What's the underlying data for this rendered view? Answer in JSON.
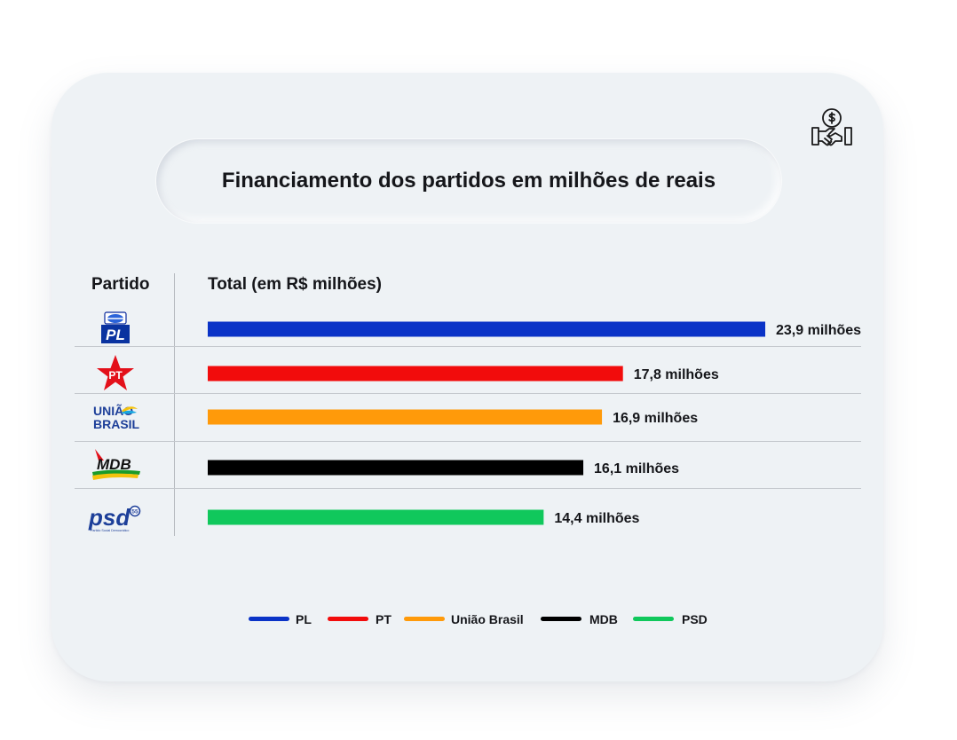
{
  "title": "Financiamento dos partidos em milhões de reais",
  "header": {
    "party_col": "Partido",
    "total_col": "Total (em R$ milhões)"
  },
  "icons": {
    "top_right": "money-handshake-icon"
  },
  "logos": {
    "pl": "PL",
    "pt": "PT",
    "uniao": [
      "UNIÃO",
      "BRASIL"
    ],
    "mdb": "MDB",
    "psd": "psd",
    "psd_number": "55",
    "psd_caption": "Partido Social Democrático"
  },
  "chart_data": {
    "type": "bar",
    "orientation": "horizontal",
    "title": "Financiamento dos partidos em milhões de reais",
    "xlabel": "Total (em R$ milhões)",
    "ylabel": "Partido",
    "categories": [
      "PL",
      "PT",
      "União Brasil",
      "MDB",
      "PSD"
    ],
    "values": [
      23.9,
      17.8,
      16.9,
      16.1,
      14.4
    ],
    "data_labels": [
      "23,9 milhões",
      "17,8 milhões",
      "16,9 milhões",
      "16,1 milhões",
      "14,4 milhões"
    ],
    "colors": [
      "#0a33c7",
      "#f20c0c",
      "#ff9a0a",
      "#000000",
      "#10c85c"
    ],
    "xlim": [
      0,
      23.9
    ],
    "grid": false,
    "legend_position": "bottom"
  }
}
